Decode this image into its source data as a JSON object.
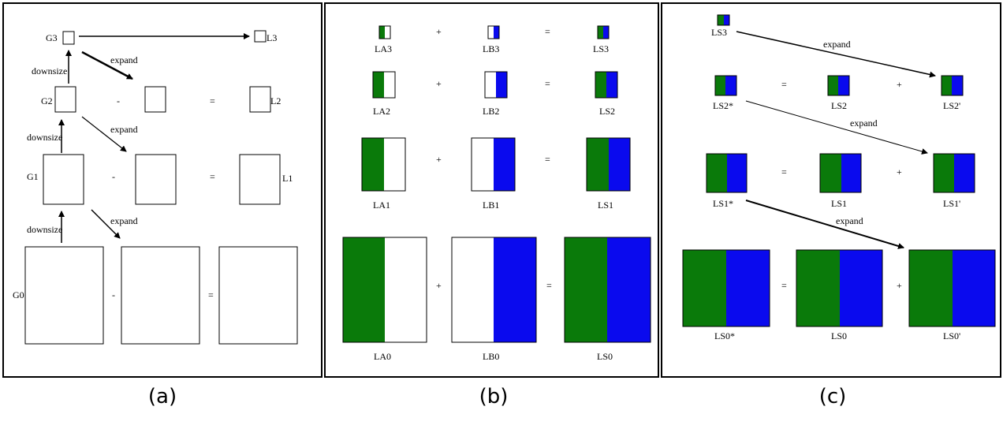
{
  "colors": {
    "green": "#0a7a0a",
    "blue": "#0a0aee",
    "white": "#ffffff",
    "stroke": "#000000"
  },
  "panel_a": {
    "caption": "(a)",
    "gauss": [
      "G3",
      "G2",
      "G1",
      "G0"
    ],
    "lap": [
      "L3",
      "L2",
      "L1"
    ],
    "downsize": "downsize",
    "expand": "expand",
    "minus": "-",
    "equals": "="
  },
  "panel_b": {
    "caption": "(b)",
    "la": [
      "LA3",
      "LA2",
      "LA1",
      "LA0"
    ],
    "lb": [
      "LB3",
      "LB2",
      "LB1",
      "LB0"
    ],
    "ls": [
      "LS3",
      "LS2",
      "LS1",
      "LS0"
    ],
    "plus": "+",
    "equals": "="
  },
  "panel_c": {
    "caption": "(c)",
    "top": "LS3",
    "star": [
      "LS2*",
      "LS1*",
      "LS0*"
    ],
    "mid": [
      "LS2",
      "LS1",
      "LS0"
    ],
    "prime": [
      "LS2'",
      "LS1'",
      "LS0'"
    ],
    "expand": "expand",
    "plus": "+",
    "equals": "="
  }
}
